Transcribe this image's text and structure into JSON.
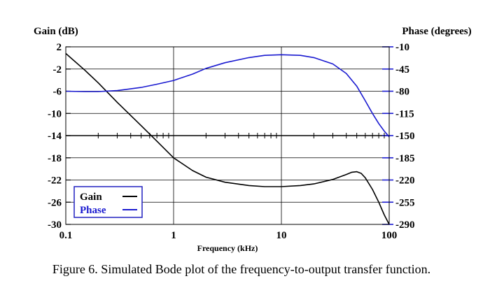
{
  "caption": "Figure 6.   Simulated Bode plot of the frequency-to-output transfer function.",
  "chart_data": {
    "type": "line",
    "x_scale": "log",
    "xlim": [
      0.1,
      100
    ],
    "xlabel": "Frequency (kHz)",
    "x_ticks": [
      {
        "value": 0.1,
        "label": "0.1"
      },
      {
        "value": 1,
        "label": "1"
      },
      {
        "value": 10,
        "label": "10"
      },
      {
        "value": 100,
        "label": "100"
      }
    ],
    "y_left": {
      "label": "Gain (dB)",
      "lim": [
        -30,
        2
      ],
      "ticks": [
        {
          "value": 2,
          "label": "2"
        },
        {
          "value": -2,
          "label": "-2"
        },
        {
          "value": -6,
          "label": "-6"
        },
        {
          "value": -10,
          "label": "-10"
        },
        {
          "value": -14,
          "label": "-14"
        },
        {
          "value": -18,
          "label": "-18"
        },
        {
          "value": -22,
          "label": "-22"
        },
        {
          "value": -26,
          "label": "-26"
        },
        {
          "value": -30,
          "label": "-30"
        }
      ]
    },
    "y_right": {
      "label": "Phase (degrees)",
      "lim": [
        -290,
        -10
      ],
      "ticks": [
        {
          "value": -10,
          "label": "-10"
        },
        {
          "value": -45,
          "label": "-45"
        },
        {
          "value": -80,
          "label": "-80"
        },
        {
          "value": -115,
          "label": "-115"
        },
        {
          "value": -150,
          "label": "-150"
        },
        {
          "value": -185,
          "label": "-185"
        },
        {
          "value": -220,
          "label": "-220"
        },
        {
          "value": -255,
          "label": "-255"
        },
        {
          "value": -290,
          "label": "-290"
        }
      ]
    },
    "grid": true,
    "zero_axis_gain": -14,
    "legend": {
      "placement": "bottom-left"
    },
    "series": [
      {
        "name": "Gain",
        "color": "#000000",
        "axis": "left",
        "x": [
          0.1,
          0.15,
          0.2,
          0.3,
          0.5,
          0.7,
          1,
          1.5,
          2,
          3,
          5,
          7,
          10,
          15,
          20,
          30,
          40,
          45,
          50,
          55,
          60,
          70,
          80,
          90,
          100
        ],
        "y": [
          0.8,
          -2.2,
          -4.5,
          -8,
          -12.2,
          -15,
          -18,
          -20.3,
          -21.5,
          -22.4,
          -23,
          -23.2,
          -23.2,
          -23,
          -22.7,
          -21.9,
          -21,
          -20.6,
          -20.5,
          -20.8,
          -21.6,
          -23.7,
          -26,
          -28.3,
          -30
        ]
      },
      {
        "name": "Phase",
        "color": "#1a1ad0",
        "axis": "right",
        "x": [
          0.1,
          0.15,
          0.2,
          0.3,
          0.5,
          0.7,
          1,
          1.5,
          2,
          3,
          5,
          7,
          10,
          15,
          20,
          30,
          40,
          50,
          60,
          70,
          80,
          90,
          100
        ],
        "y": [
          -80,
          -80.5,
          -80.5,
          -79,
          -74,
          -69,
          -63,
          -53,
          -44,
          -35,
          -27,
          -23.5,
          -22.5,
          -23.5,
          -27,
          -37,
          -52,
          -72,
          -95,
          -115,
          -131,
          -143,
          -152
        ]
      }
    ]
  }
}
